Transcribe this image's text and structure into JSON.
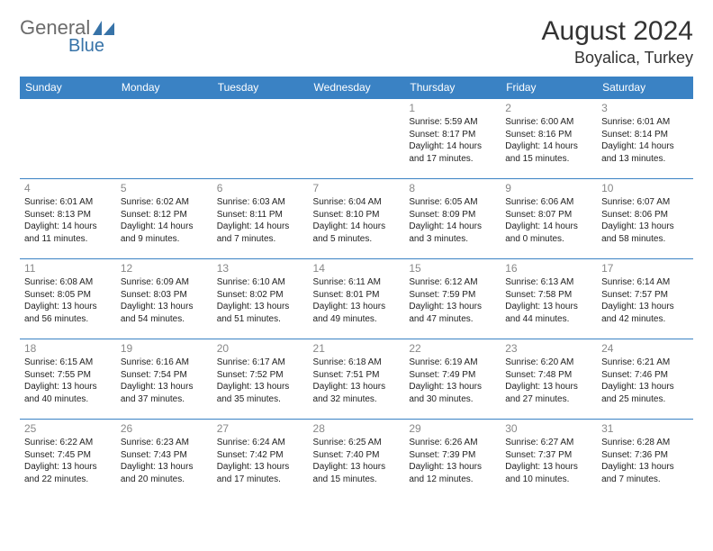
{
  "logo": {
    "part1": "General",
    "part2": "Blue"
  },
  "title": "August 2024",
  "location": "Boyalica, Turkey",
  "header_bg": "#3a82c4",
  "header_fg": "#ffffff",
  "border_color": "#3a82c4",
  "daynum_color": "#888888",
  "text_color": "#222222",
  "days": [
    "Sunday",
    "Monday",
    "Tuesday",
    "Wednesday",
    "Thursday",
    "Friday",
    "Saturday"
  ],
  "weeks": [
    [
      null,
      null,
      null,
      null,
      {
        "n": "1",
        "sr": "5:59 AM",
        "ss": "8:17 PM",
        "dl": "14 hours and 17 minutes."
      },
      {
        "n": "2",
        "sr": "6:00 AM",
        "ss": "8:16 PM",
        "dl": "14 hours and 15 minutes."
      },
      {
        "n": "3",
        "sr": "6:01 AM",
        "ss": "8:14 PM",
        "dl": "14 hours and 13 minutes."
      }
    ],
    [
      {
        "n": "4",
        "sr": "6:01 AM",
        "ss": "8:13 PM",
        "dl": "14 hours and 11 minutes."
      },
      {
        "n": "5",
        "sr": "6:02 AM",
        "ss": "8:12 PM",
        "dl": "14 hours and 9 minutes."
      },
      {
        "n": "6",
        "sr": "6:03 AM",
        "ss": "8:11 PM",
        "dl": "14 hours and 7 minutes."
      },
      {
        "n": "7",
        "sr": "6:04 AM",
        "ss": "8:10 PM",
        "dl": "14 hours and 5 minutes."
      },
      {
        "n": "8",
        "sr": "6:05 AM",
        "ss": "8:09 PM",
        "dl": "14 hours and 3 minutes."
      },
      {
        "n": "9",
        "sr": "6:06 AM",
        "ss": "8:07 PM",
        "dl": "14 hours and 0 minutes."
      },
      {
        "n": "10",
        "sr": "6:07 AM",
        "ss": "8:06 PM",
        "dl": "13 hours and 58 minutes."
      }
    ],
    [
      {
        "n": "11",
        "sr": "6:08 AM",
        "ss": "8:05 PM",
        "dl": "13 hours and 56 minutes."
      },
      {
        "n": "12",
        "sr": "6:09 AM",
        "ss": "8:03 PM",
        "dl": "13 hours and 54 minutes."
      },
      {
        "n": "13",
        "sr": "6:10 AM",
        "ss": "8:02 PM",
        "dl": "13 hours and 51 minutes."
      },
      {
        "n": "14",
        "sr": "6:11 AM",
        "ss": "8:01 PM",
        "dl": "13 hours and 49 minutes."
      },
      {
        "n": "15",
        "sr": "6:12 AM",
        "ss": "7:59 PM",
        "dl": "13 hours and 47 minutes."
      },
      {
        "n": "16",
        "sr": "6:13 AM",
        "ss": "7:58 PM",
        "dl": "13 hours and 44 minutes."
      },
      {
        "n": "17",
        "sr": "6:14 AM",
        "ss": "7:57 PM",
        "dl": "13 hours and 42 minutes."
      }
    ],
    [
      {
        "n": "18",
        "sr": "6:15 AM",
        "ss": "7:55 PM",
        "dl": "13 hours and 40 minutes."
      },
      {
        "n": "19",
        "sr": "6:16 AM",
        "ss": "7:54 PM",
        "dl": "13 hours and 37 minutes."
      },
      {
        "n": "20",
        "sr": "6:17 AM",
        "ss": "7:52 PM",
        "dl": "13 hours and 35 minutes."
      },
      {
        "n": "21",
        "sr": "6:18 AM",
        "ss": "7:51 PM",
        "dl": "13 hours and 32 minutes."
      },
      {
        "n": "22",
        "sr": "6:19 AM",
        "ss": "7:49 PM",
        "dl": "13 hours and 30 minutes."
      },
      {
        "n": "23",
        "sr": "6:20 AM",
        "ss": "7:48 PM",
        "dl": "13 hours and 27 minutes."
      },
      {
        "n": "24",
        "sr": "6:21 AM",
        "ss": "7:46 PM",
        "dl": "13 hours and 25 minutes."
      }
    ],
    [
      {
        "n": "25",
        "sr": "6:22 AM",
        "ss": "7:45 PM",
        "dl": "13 hours and 22 minutes."
      },
      {
        "n": "26",
        "sr": "6:23 AM",
        "ss": "7:43 PM",
        "dl": "13 hours and 20 minutes."
      },
      {
        "n": "27",
        "sr": "6:24 AM",
        "ss": "7:42 PM",
        "dl": "13 hours and 17 minutes."
      },
      {
        "n": "28",
        "sr": "6:25 AM",
        "ss": "7:40 PM",
        "dl": "13 hours and 15 minutes."
      },
      {
        "n": "29",
        "sr": "6:26 AM",
        "ss": "7:39 PM",
        "dl": "13 hours and 12 minutes."
      },
      {
        "n": "30",
        "sr": "6:27 AM",
        "ss": "7:37 PM",
        "dl": "13 hours and 10 minutes."
      },
      {
        "n": "31",
        "sr": "6:28 AM",
        "ss": "7:36 PM",
        "dl": "13 hours and 7 minutes."
      }
    ]
  ],
  "labels": {
    "sunrise": "Sunrise:",
    "sunset": "Sunset:",
    "daylight": "Daylight:"
  }
}
